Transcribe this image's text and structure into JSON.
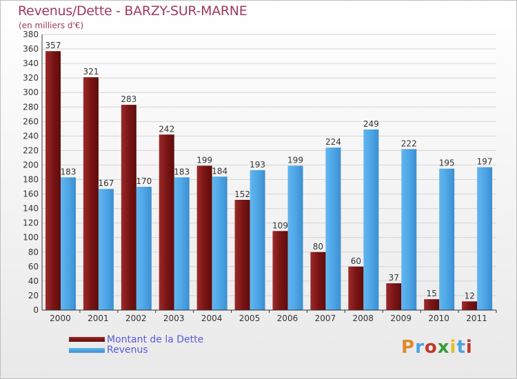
{
  "header": {
    "title": "Revenus/Dette - BARZY-SUR-MARNE",
    "subtitle": "(en milliers d'€)"
  },
  "legend": {
    "debt_label": "Montant de la Dette",
    "revenue_label": "Revenus"
  },
  "logo": {
    "letters": [
      "P",
      "r",
      "o",
      "x",
      "i",
      "t",
      "i"
    ],
    "colors": [
      "#e08a2c",
      "#4aa3e0",
      "#c0392b",
      "#3a9a3a",
      "#e0c02c",
      "#4aa3e0",
      "#c0392b"
    ]
  },
  "colors": {
    "debt": "#7a1a1a",
    "revenue": "#4ea6e6",
    "title": "#a03a5a"
  },
  "chart_data": {
    "type": "bar",
    "title": "Revenus/Dette - BARZY-SUR-MARNE",
    "subtitle": "(en milliers d'€)",
    "xlabel": "",
    "ylabel": "",
    "ylim": [
      0,
      380
    ],
    "ytick_step": 20,
    "grid": true,
    "legend_position": "bottom-left",
    "categories": [
      "2000",
      "2001",
      "2002",
      "2003",
      "2004",
      "2005",
      "2006",
      "2007",
      "2008",
      "2009",
      "2010",
      "2011"
    ],
    "series": [
      {
        "name": "Montant de la Dette",
        "values": [
          357,
          321,
          283,
          242,
          199,
          152,
          109,
          80,
          60,
          37,
          15,
          12
        ]
      },
      {
        "name": "Revenus",
        "values": [
          183,
          167,
          170,
          183,
          184,
          193,
          199,
          224,
          249,
          222,
          195,
          197
        ]
      }
    ]
  }
}
